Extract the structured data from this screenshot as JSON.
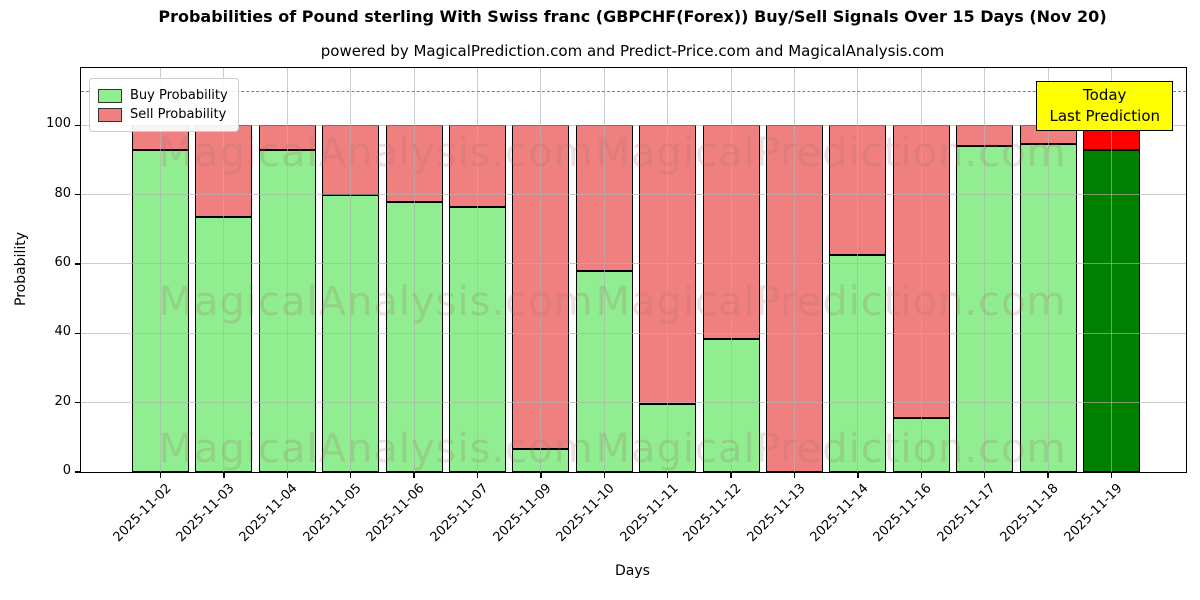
{
  "title": "Probabilities of Pound sterling With Swiss franc (GBPCHF(Forex)) Buy/Sell Signals Over 15 Days (Nov 20)",
  "subtitle": "powered by MagicalPrediction.com and Predict-Price.com and MagicalAnalysis.com",
  "legend": {
    "items": [
      {
        "label": "Buy Probability",
        "color": "#90EE90"
      },
      {
        "label": "Sell Probability",
        "color": "#F08080"
      }
    ]
  },
  "annotation_box": {
    "line1": "Today",
    "line2": "Last Prediction",
    "bg_color": "#FFFF00"
  },
  "axes": {
    "ylabel": "Probability",
    "xlabel": "Days",
    "yticks": [
      0,
      20,
      40,
      60,
      80,
      100
    ],
    "ylim": [
      0,
      116.5
    ],
    "dashed_line_y": 110,
    "grid": true
  },
  "watermarks": {
    "texts": [
      "MagicalAnalysis.com",
      "MagicalPrediction.com"
    ],
    "color": "rgba(165,110,110,0.22)"
  },
  "colors": {
    "buy": "#90EE90",
    "sell": "#F08080",
    "today_buy": "#008000",
    "today_sell": "#FF0000",
    "bar_edge": "#000000",
    "grid": "#b0b0b0",
    "dashed_line": "#808080",
    "annotation_bg": "#FFFF00"
  },
  "chart_data": {
    "type": "bar",
    "stacked": true,
    "title": "Probabilities of Pound sterling With Swiss franc (GBPCHF(Forex)) Buy/Sell Signals Over 15 Days (Nov 20)",
    "xlabel": "Days",
    "ylabel": "Probability",
    "ylim": [
      0,
      116.5
    ],
    "legend_position": "upper left",
    "categories": [
      "2025-11-02",
      "2025-11-03",
      "2025-11-04",
      "2025-11-05",
      "2025-11-06",
      "2025-11-07",
      "2025-11-09",
      "2025-11-10",
      "2025-11-11",
      "2025-11-12",
      "2025-11-13",
      "2025-11-14",
      "2025-11-16",
      "2025-11-17",
      "2025-11-18",
      "2025-11-19"
    ],
    "series": [
      {
        "name": "Buy Probability",
        "values": [
          93,
          73.5,
          93,
          80,
          78,
          76.5,
          6.5,
          58,
          19.5,
          38.5,
          0,
          62.5,
          15.5,
          94,
          94.5,
          93
        ]
      },
      {
        "name": "Sell Probability",
        "values": [
          7,
          26.5,
          7,
          20,
          22,
          23.5,
          93.5,
          42,
          80.5,
          61.5,
          100,
          37.5,
          84.5,
          6,
          5.5,
          7
        ]
      }
    ],
    "today": {
      "index": 15,
      "category": "2025-11-19",
      "buy": 93,
      "sell": 7
    }
  }
}
